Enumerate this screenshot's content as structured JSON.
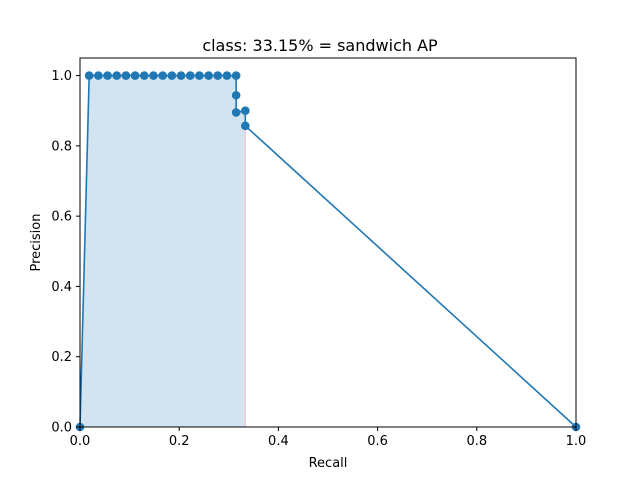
{
  "chart_data": {
    "type": "line",
    "title": "class: 33.15% = sandwich AP",
    "xlabel": "Recall",
    "ylabel": "Precision",
    "xlim": [
      0.0,
      1.0
    ],
    "ylim": [
      0.0,
      1.05
    ],
    "xticks": [
      "0.0",
      "0.2",
      "0.4",
      "0.6",
      "0.8",
      "1.0"
    ],
    "yticks": [
      "0.0",
      "0.2",
      "0.4",
      "0.6",
      "0.8",
      "1.0"
    ],
    "grid": false,
    "colors": {
      "line": "#1f77b4",
      "marker": "#1f77b4",
      "fill": "#1f77b4",
      "fill_edge": "#ffc0cb"
    },
    "series": [
      {
        "x": [
          0.0,
          0.0185,
          0.037,
          0.0556,
          0.0741,
          0.0926,
          0.1111,
          0.1296,
          0.1481,
          0.1667,
          0.1852,
          0.2037,
          0.2222,
          0.2407,
          0.2593,
          0.2778,
          0.2963,
          0.3148,
          0.3148,
          0.3148,
          0.3333,
          0.3333,
          1.0
        ],
        "y": [
          0.0,
          1.0,
          1.0,
          1.0,
          1.0,
          1.0,
          1.0,
          1.0,
          1.0,
          1.0,
          1.0,
          1.0,
          1.0,
          1.0,
          1.0,
          1.0,
          1.0,
          1.0,
          0.944,
          0.895,
          0.9,
          0.857,
          0.0
        ]
      }
    ],
    "ap_area": {
      "x": [
        0.0,
        0.0185,
        0.3148,
        0.3148,
        0.3333,
        0.3333
      ],
      "y": [
        0.0,
        1.0,
        1.0,
        0.9,
        0.9,
        0.857
      ]
    }
  }
}
